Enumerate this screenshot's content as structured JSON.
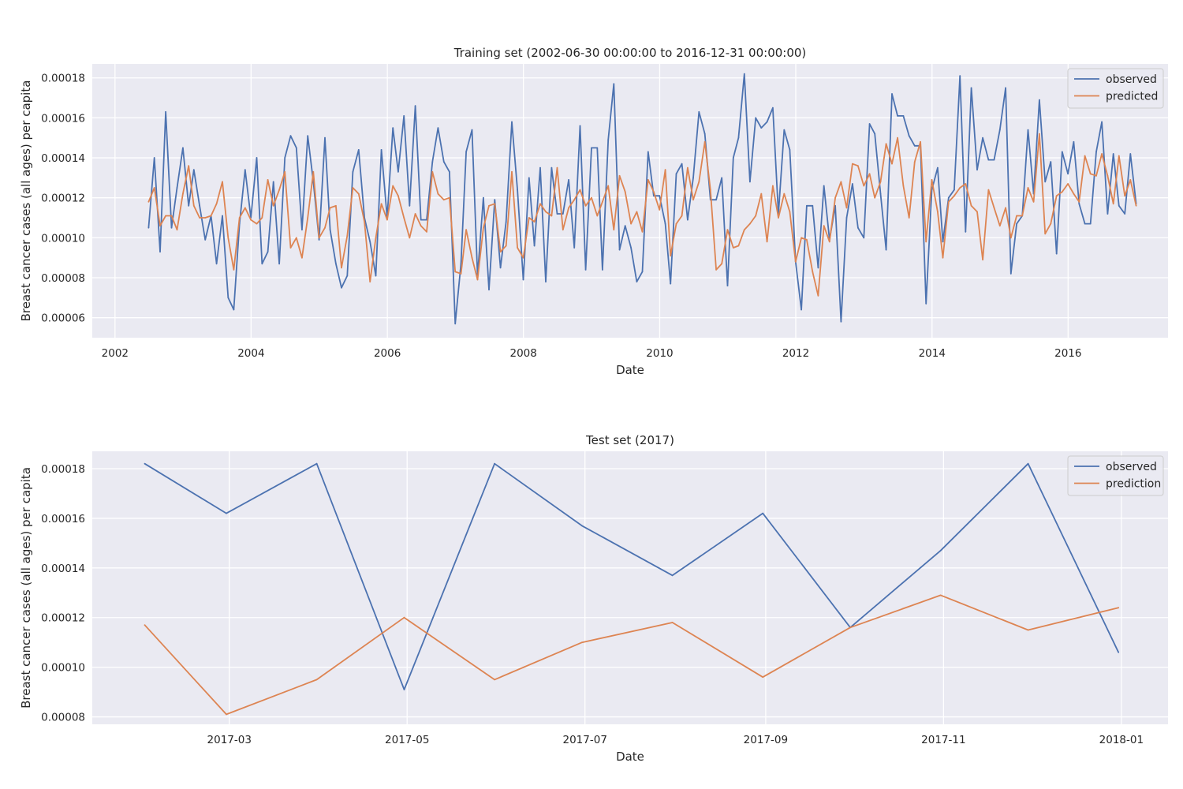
{
  "chart_data": [
    {
      "type": "line",
      "title": "Training set (2002-06-30 00:00:00 to 2016-12-31 00:00:00)",
      "xlabel": "Date",
      "ylabel": "Breast cancer cases (all ages) per capita",
      "xlim": [
        "2001-09-01",
        "2017-06-20"
      ],
      "ylim": [
        5e-05,
        0.000187
      ],
      "x_ticks": [
        {
          "value": "2002-01-01",
          "label": "2002"
        },
        {
          "value": "2004-01-01",
          "label": "2004"
        },
        {
          "value": "2006-01-01",
          "label": "2006"
        },
        {
          "value": "2008-01-01",
          "label": "2008"
        },
        {
          "value": "2010-01-01",
          "label": "2010"
        },
        {
          "value": "2012-01-01",
          "label": "2012"
        },
        {
          "value": "2014-01-01",
          "label": "2014"
        },
        {
          "value": "2016-01-01",
          "label": "2016"
        }
      ],
      "y_ticks": [
        {
          "value": 6e-05,
          "label": "0.00006"
        },
        {
          "value": 8e-05,
          "label": "0.00008"
        },
        {
          "value": 0.0001,
          "label": "0.00010"
        },
        {
          "value": 0.00012,
          "label": "0.00012"
        },
        {
          "value": 0.00014,
          "label": "0.00014"
        },
        {
          "value": 0.00016,
          "label": "0.00016"
        },
        {
          "value": 0.00018,
          "label": "0.00018"
        }
      ],
      "grid": true,
      "legend": "top-right",
      "x_start": "2002-06-30",
      "x_end": "2016-12-31",
      "x_frequency": "monthly",
      "series": [
        {
          "name": "observed",
          "color": "#4c72b0",
          "values": [
            0.000105,
            0.00014,
            9.3e-05,
            0.000163,
            0.000105,
            0.000125,
            0.000145,
            0.000116,
            0.000134,
            0.000116,
            9.9e-05,
            0.000111,
            8.7e-05,
            0.000111,
            7e-05,
            6.4e-05,
            0.000107,
            0.000134,
            0.00011,
            0.00014,
            8.7e-05,
            9.3e-05,
            0.000128,
            8.7e-05,
            0.00014,
            0.000151,
            0.000145,
            0.000104,
            0.000151,
            0.000128,
            9.9e-05,
            0.00015,
            0.000104,
            8.7e-05,
            7.5e-05,
            8.1e-05,
            0.000133,
            0.000144,
            0.00011,
            9.8e-05,
            8.1e-05,
            0.000144,
            0.00011,
            0.000155,
            0.000133,
            0.000161,
            0.000116,
            0.000166,
            0.000109,
            0.000109,
            0.000138,
            0.000155,
            0.000138,
            0.000133,
            5.7e-05,
            8.7e-05,
            0.000143,
            0.000154,
            8.1e-05,
            0.00012,
            7.4e-05,
            0.000119,
            8.5e-05,
            0.000108,
            0.000158,
            0.000124,
            7.9e-05,
            0.00013,
            9.6e-05,
            0.000135,
            7.8e-05,
            0.000135,
            0.000112,
            0.000112,
            0.000129,
            9.5e-05,
            0.000156,
            8.4e-05,
            0.000145,
            0.000145,
            8.4e-05,
            0.000149,
            0.000177,
            9.4e-05,
            0.000106,
            9.5e-05,
            7.8e-05,
            8.3e-05,
            0.000143,
            0.000121,
            0.000121,
            0.000107,
            7.7e-05,
            0.000132,
            0.000137,
            0.000109,
            0.00013,
            0.000163,
            0.000152,
            0.000119,
            0.000119,
            0.00013,
            7.6e-05,
            0.00014,
            0.00015,
            0.000182,
            0.000128,
            0.00016,
            0.000155,
            0.000158,
            0.000165,
            0.000112,
            0.000154,
            0.000144,
            8.8e-05,
            6.4e-05,
            0.000116,
            0.000116,
            8.5e-05,
            0.000126,
            9.9e-05,
            0.000116,
            5.8e-05,
            0.00011,
            0.000127,
            0.000105,
            0.0001,
            0.000157,
            0.000152,
            0.000122,
            9.4e-05,
            0.000172,
            0.000161,
            0.000161,
            0.000151,
            0.000146,
            0.000146,
            6.7e-05,
            0.000124,
            0.000135,
            9.8e-05,
            0.00012,
            0.000124,
            0.000181,
            0.000103,
            0.000175,
            0.000134,
            0.00015,
            0.000139,
            0.000139,
            0.000154,
            0.000175,
            8.2e-05,
            0.000107,
            0.000111,
            0.000154,
            0.000122,
            0.000169,
            0.000128,
            0.000138,
            9.2e-05,
            0.000143,
            0.000132,
            0.000148,
            0.000117,
            0.000107,
            0.000107,
            0.000143,
            0.000158,
            0.000112,
            0.000142,
            0.000116,
            0.000112,
            0.000142,
            0.000117
          ]
        },
        {
          "name": "predicted",
          "color": "#dd8452",
          "values": [
            0.000118,
            0.000125,
            0.000106,
            0.000111,
            0.000111,
            0.000104,
            0.000122,
            0.000136,
            0.000116,
            0.00011,
            0.00011,
            0.000111,
            0.000117,
            0.000128,
            0.0001,
            8.4e-05,
            0.00011,
            0.000115,
            0.000109,
            0.000107,
            0.00011,
            0.000129,
            0.000116,
            0.000124,
            0.000133,
            9.5e-05,
            0.0001,
            9e-05,
            0.00011,
            0.000133,
            0.0001,
            0.000105,
            0.000115,
            0.000116,
            8.5e-05,
            0.000101,
            0.000125,
            0.000122,
            0.000108,
            7.8e-05,
            0.0001,
            0.000117,
            0.000109,
            0.000126,
            0.000121,
            0.00011,
            0.0001,
            0.000112,
            0.000106,
            0.000103,
            0.000133,
            0.000122,
            0.000119,
            0.00012,
            8.3e-05,
            8.2e-05,
            0.000104,
            9e-05,
            7.9e-05,
            0.000105,
            0.000116,
            0.000117,
            9.3e-05,
            9.6e-05,
            0.000133,
            9.5e-05,
            9e-05,
            0.00011,
            0.000108,
            0.000117,
            0.000113,
            0.000111,
            0.000135,
            0.000104,
            0.000115,
            0.000119,
            0.000124,
            0.000116,
            0.00012,
            0.000111,
            0.000118,
            0.000126,
            0.000104,
            0.000131,
            0.000123,
            0.000107,
            0.000113,
            0.000103,
            0.000129,
            0.000123,
            0.000114,
            0.000134,
            9.1e-05,
            0.000107,
            0.000111,
            0.000135,
            0.000119,
            0.000128,
            0.000148,
            0.000124,
            8.4e-05,
            8.7e-05,
            0.000104,
            9.5e-05,
            9.6e-05,
            0.000104,
            0.000107,
            0.000111,
            0.000122,
            9.8e-05,
            0.000126,
            0.00011,
            0.000122,
            0.000113,
            8.8e-05,
            0.0001,
            9.9e-05,
            8.3e-05,
            7.1e-05,
            0.000106,
            9.8e-05,
            0.00012,
            0.000128,
            0.000115,
            0.000137,
            0.000136,
            0.000126,
            0.000132,
            0.00012,
            0.000128,
            0.000147,
            0.000137,
            0.00015,
            0.000126,
            0.00011,
            0.000138,
            0.000148,
            9.8e-05,
            0.000129,
            0.000113,
            9e-05,
            0.000118,
            0.000121,
            0.000125,
            0.000127,
            0.000116,
            0.000113,
            8.9e-05,
            0.000124,
            0.000115,
            0.000106,
            0.000115,
            0.0001,
            0.000111,
            0.000111,
            0.000125,
            0.000118,
            0.000152,
            0.000102,
            0.000107,
            0.000121,
            0.000123,
            0.000127,
            0.000122,
            0.000118,
            0.000141,
            0.000132,
            0.000131,
            0.000142,
            0.000131,
            0.000117,
            0.000141,
            0.000121,
            0.000129,
            0.000116
          ]
        }
      ]
    },
    {
      "type": "line",
      "title": "Test set (2017)",
      "xlabel": "Date",
      "ylabel": "Breast cancer cases (all ages) per capita",
      "xlim": [
        "2017-01-13",
        "2018-01-17"
      ],
      "ylim": [
        7.7e-05,
        0.000187
      ],
      "x_ticks": [
        {
          "value": "2017-03-01",
          "label": "2017-03"
        },
        {
          "value": "2017-05-01",
          "label": "2017-05"
        },
        {
          "value": "2017-07-01",
          "label": "2017-07"
        },
        {
          "value": "2017-09-01",
          "label": "2017-09"
        },
        {
          "value": "2017-11-01",
          "label": "2017-11"
        },
        {
          "value": "2018-01-01",
          "label": "2018-01"
        }
      ],
      "y_ticks": [
        {
          "value": 8e-05,
          "label": "0.00008"
        },
        {
          "value": 0.0001,
          "label": "0.00010"
        },
        {
          "value": 0.00012,
          "label": "0.00012"
        },
        {
          "value": 0.00014,
          "label": "0.00014"
        },
        {
          "value": 0.00016,
          "label": "0.00016"
        },
        {
          "value": 0.00018,
          "label": "0.00018"
        }
      ],
      "grid": true,
      "legend": "top-right",
      "x": [
        "2017-01-31",
        "2017-02-28",
        "2017-03-31",
        "2017-04-30",
        "2017-05-31",
        "2017-06-30",
        "2017-07-31",
        "2017-08-31",
        "2017-09-30",
        "2017-10-31",
        "2017-11-30",
        "2017-12-31"
      ],
      "series": [
        {
          "name": "observed",
          "color": "#4c72b0",
          "values": [
            0.000182,
            0.000162,
            0.000182,
            9.1e-05,
            0.000182,
            0.000157,
            0.000137,
            0.000162,
            0.000116,
            0.000147,
            0.000182,
            0.000106
          ]
        },
        {
          "name": "prediction",
          "color": "#dd8452",
          "values": [
            0.000117,
            8.1e-05,
            9.5e-05,
            0.00012,
            9.5e-05,
            0.00011,
            0.000118,
            9.6e-05,
            0.000116,
            0.000129,
            0.000115,
            0.000124
          ]
        }
      ]
    }
  ]
}
